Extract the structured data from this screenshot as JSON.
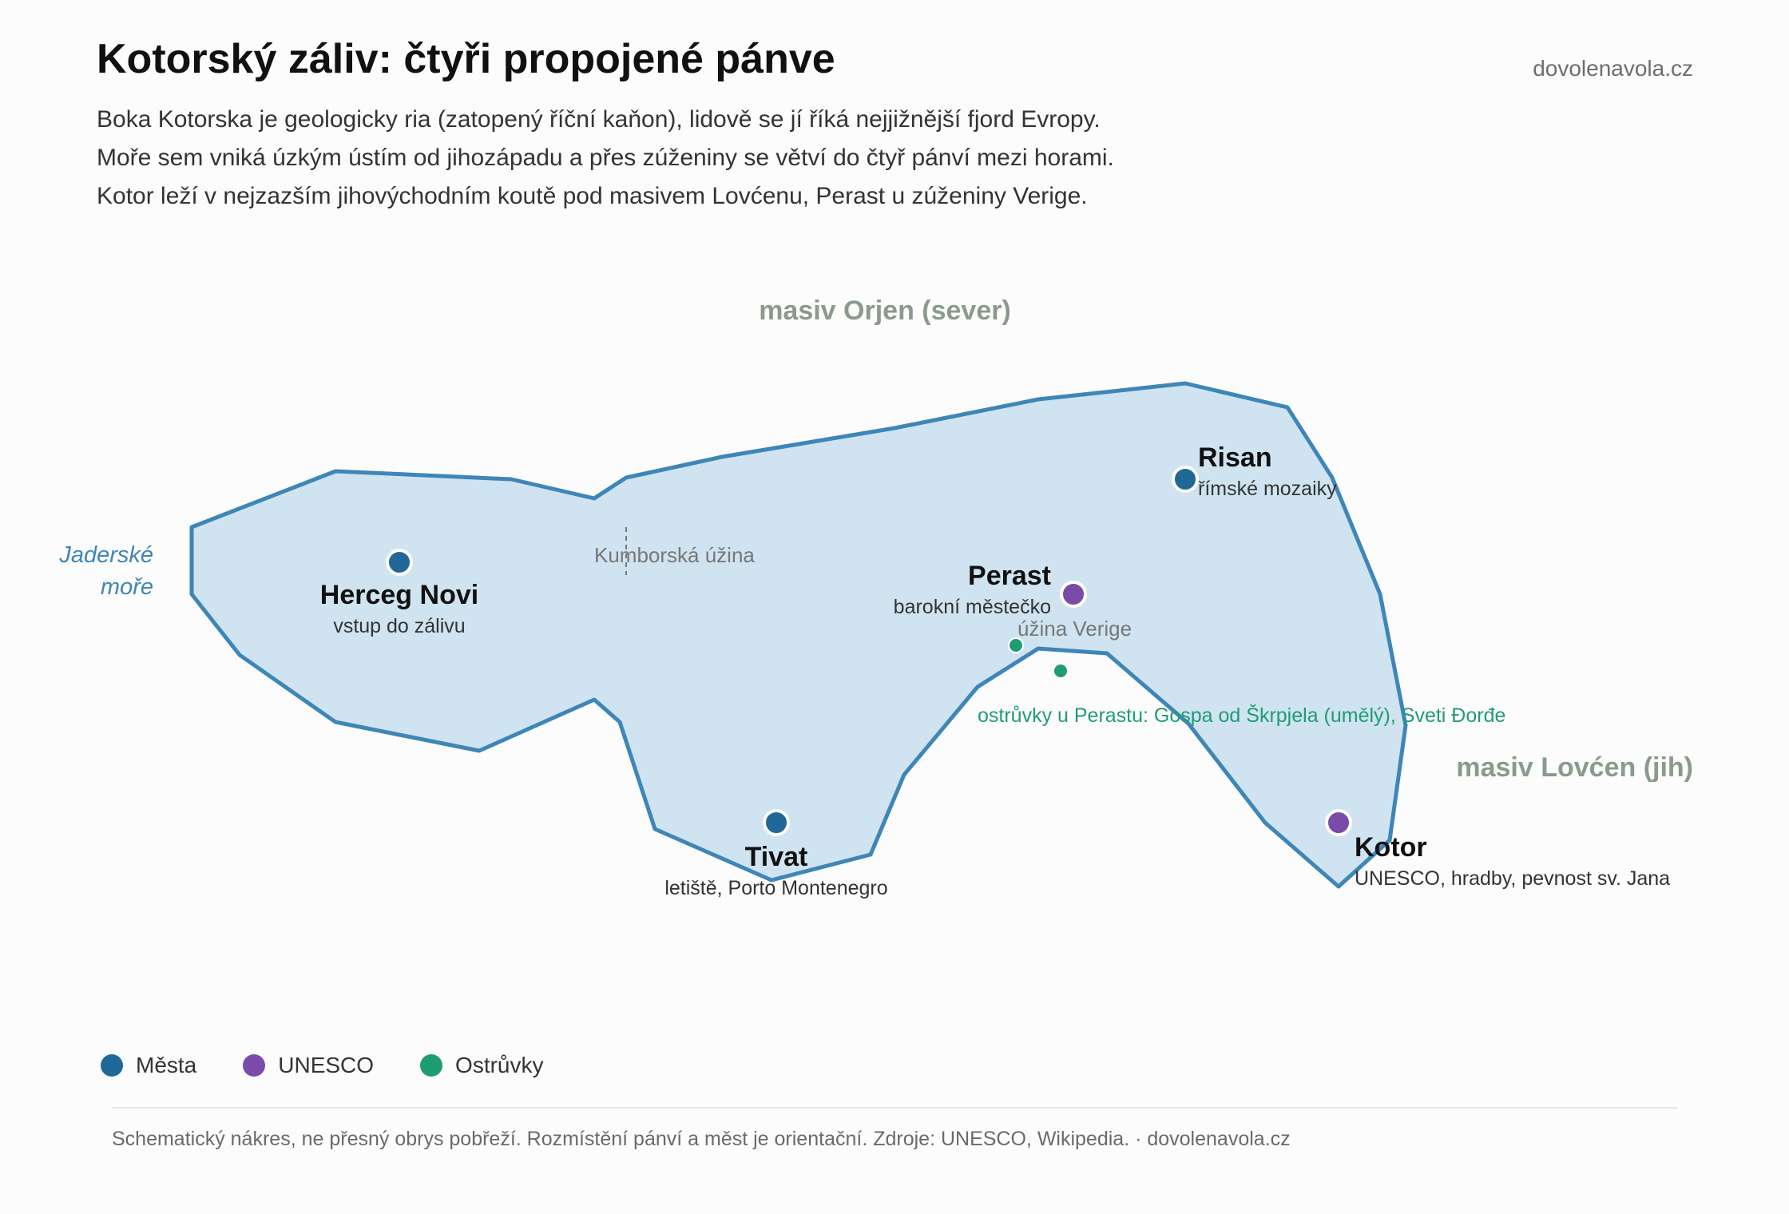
{
  "header": {
    "title": "Kotorský záliv: čtyři propojené pánve",
    "brand": "dovolenavola.cz",
    "subtitle_lines": [
      "Boka Kotorska je geologicky ria (zatopený říční kaňon), lidově se jí říká nejjižnější fjord Evropy.",
      "Moře sem vniká úzkým ústím od jihozápadu a přes zúženiny se větví do čtyř pánví mezi horami.",
      "Kotor leží v nejzazším jihovýchodním koutě pod masivem Lovćenu, Perast u zúženiny Verige."
    ]
  },
  "map": {
    "colors": {
      "water_fill": "#cfe3f1",
      "coast_stroke": "#3e86b7",
      "city": "#1f6898",
      "unesco": "#7a4ba8",
      "islet": "#1f9c74",
      "mountain_label": "#8a9a8c",
      "sea_label": "#3e86b7",
      "strait_label": "#777777"
    },
    "mountains": {
      "north": "masiv Orjen (sever)",
      "south": "masiv Lovćen (jih)"
    },
    "sea": {
      "line1": "Jaderské",
      "line2": "moře"
    },
    "straits": {
      "kumbor": "Kumborská úžina",
      "verige": "úžina Verige"
    },
    "islets_label": "ostrůvky u Perastu: Gospa od Škrpjela (umělý), Sveti Đorđe",
    "places": {
      "herceg_novi": {
        "name": "Herceg Novi",
        "note": "vstup do zálivu",
        "category": "city"
      },
      "tivat": {
        "name": "Tivat",
        "note": "letiště, Porto Montenegro",
        "category": "city"
      },
      "perast": {
        "name": "Perast",
        "note": "barokní městečko",
        "category": "unesco"
      },
      "risan": {
        "name": "Risan",
        "note": "římské mozaiky",
        "category": "city"
      },
      "kotor": {
        "name": "Kotor",
        "note": "UNESCO, hradby, pevnost sv. Jana",
        "category": "unesco"
      }
    }
  },
  "legend": {
    "items": [
      {
        "label": "Města",
        "color": "#1f6898"
      },
      {
        "label": "UNESCO",
        "color": "#7a4ba8"
      },
      {
        "label": "Ostrůvky",
        "color": "#1f9c74"
      }
    ]
  },
  "footer": {
    "note": "Schematický nákres, ne přesný obrys pobřeží. Rozmístění pánví a měst je orientační. Zdroje: UNESCO, Wikipedia. · dovolenavola.cz"
  }
}
